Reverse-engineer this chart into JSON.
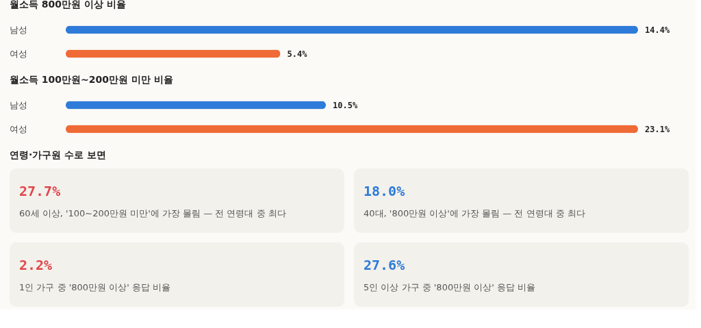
{
  "chart_data": [
    {
      "type": "bar",
      "orientation": "horizontal",
      "title": "월소득 800만원 이상 비율",
      "categories": [
        "남성",
        "여성"
      ],
      "values": [
        14.4,
        5.4
      ],
      "colors": [
        "#2f7bd9",
        "#ef6a36"
      ],
      "value_labels": [
        "14.4%",
        "5.4%"
      ],
      "xlim": [
        0,
        14.4
      ]
    },
    {
      "type": "bar",
      "orientation": "horizontal",
      "title": "월소득 100만원~200만원 미만 비율",
      "categories": [
        "남성",
        "여성"
      ],
      "values": [
        10.5,
        23.1
      ],
      "colors": [
        "#2f7bd9",
        "#ef6a36"
      ],
      "value_labels": [
        "10.5%",
        "23.1%"
      ],
      "xlim": [
        0,
        23.1
      ]
    },
    {
      "type": "other",
      "title": "연령·가구원 수로 보면",
      "annotations": [
        "27.7%",
        "60세 이상, '100~200만원 미만'에 가장 몰림 — 전 연령대 중 최다",
        "18.0%",
        "40대, '800만원 이상'에 가장 몰림 — 전 연령대 중 최다",
        "2.2%",
        "1인 가구 중 '800만원 이상' 응답 비율",
        "27.6%",
        "5인 이상 가구 중 '800만원 이상' 응답 비율"
      ],
      "colors": [
        "#e0474c",
        "#2f7bd9",
        "#e0474c",
        "#2f7bd9"
      ]
    }
  ]
}
